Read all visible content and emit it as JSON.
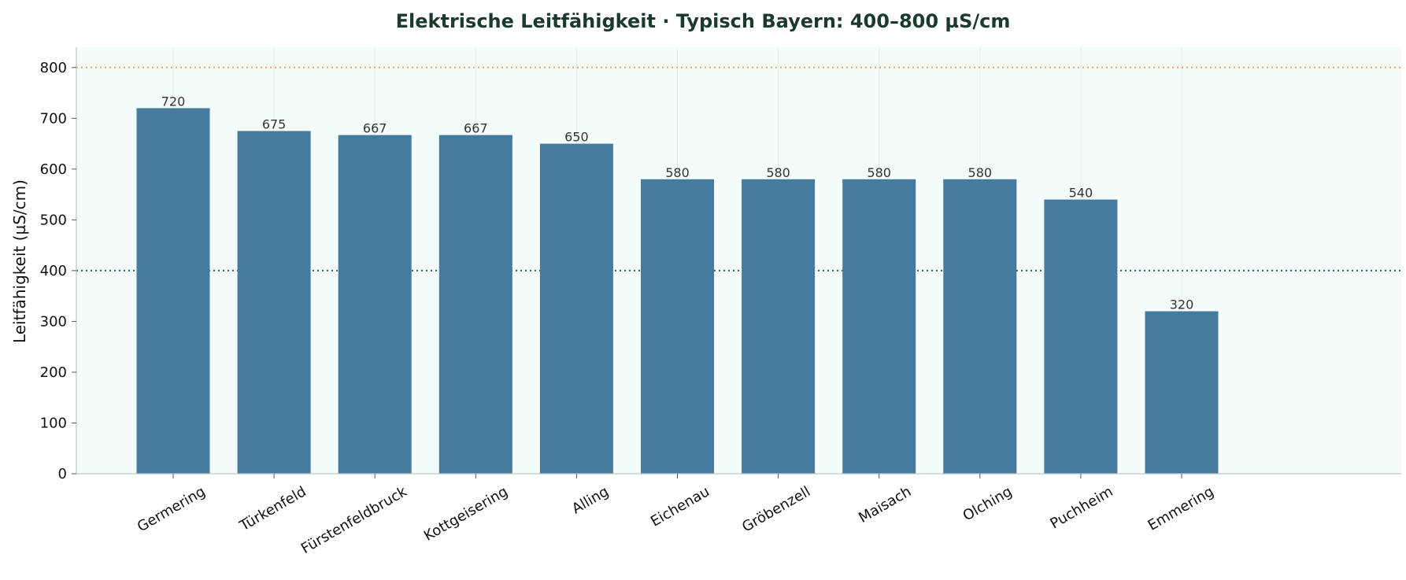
{
  "chart_data": {
    "type": "bar",
    "title": "Elektrische Leitfähigkeit · Typisch Bayern: 400–800 µS/cm",
    "xlabel": "",
    "ylabel": "Leitfähigkeit (µS/cm)",
    "categories": [
      "Germering",
      "Türkenfeld",
      "Fürstenfeldbruck",
      "Kottgeisering",
      "Alling",
      "Eichenau",
      "Gröbenzell",
      "Maisach",
      "Olching",
      "Puchheim",
      "Emmering"
    ],
    "values": [
      720,
      675,
      667,
      667,
      650,
      580,
      580,
      580,
      580,
      540,
      320
    ],
    "ylim": [
      0,
      840
    ],
    "yticks": [
      0,
      100,
      200,
      300,
      400,
      500,
      600,
      700,
      800
    ],
    "reference_lines": [
      {
        "value": 400,
        "color": "#2e6b4a",
        "style": "dotted"
      },
      {
        "value": 800,
        "color": "#f0a35a",
        "style": "dotted"
      }
    ],
    "bar_color": "#457b9d",
    "plot_background": "#f5fcfc",
    "grid": "vertical"
  }
}
